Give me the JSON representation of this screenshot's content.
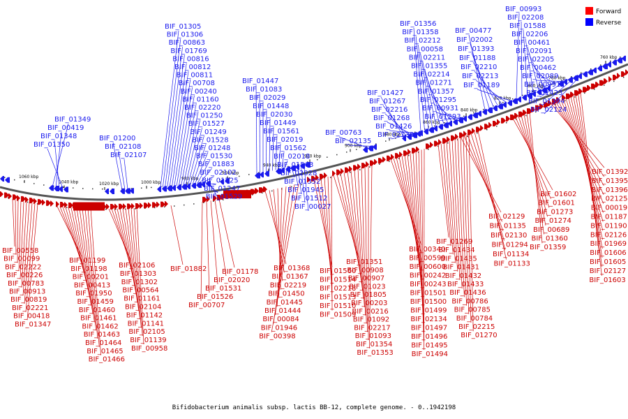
{
  "caption": "Bifidobacterium animalis subsp. lactis BB-12, complete genome. - 0..1942198",
  "legend": [
    {
      "label": "Forward",
      "color": "#ff0000"
    },
    {
      "label": "Reverse",
      "color": "#0000ff"
    }
  ],
  "colors": {
    "forward": "#cc0000",
    "reverse": "#1a1aee",
    "backbone": "#555555"
  },
  "ticks": [
    "1060 kbp",
    "1040 kbp",
    "1020 kbp",
    "1000 kbp",
    "980 kbp",
    "960 kbp",
    "940 kbp",
    "920 kbp",
    "900 kbp",
    "880 kbp",
    "860 kbp",
    "840 kbp",
    "820 kbp",
    "800 kbp",
    "780 kbp",
    "760 kbp"
  ],
  "reverse_groups": [
    [
      "BIF_01349",
      "BIF_00419",
      "BIF_01348",
      "BIF_01350"
    ],
    [
      "BIF_01200",
      "BIF_02108",
      "BIF_02107"
    ],
    [
      "BIF_01305",
      "BIF_01306",
      "BIF_00863",
      "BIF_01769",
      "BIF_00816",
      "BIF_00812",
      "BIF_00811",
      "BIF_00708",
      "BIF_00240",
      "BIF_01160",
      "BIF_02220",
      "BIF_01250",
      "BIF_01527",
      "BIF_01249",
      "BIF_01528",
      "BIF_01248",
      "BIF_01530",
      "BIF_01883",
      "BIF_02102",
      "BIF_01525",
      "BIF_01247",
      "BIF_01529"
    ],
    [
      "BIF_01447",
      "BIF_01083",
      "BIF_02029",
      "BIF_01448",
      "BIF_02030",
      "BIF_01449",
      "BIF_01561",
      "BIF_02019",
      "BIF_01562",
      "BIF_02018",
      "BIF_01563",
      "BIF_02028",
      "BIF_01352",
      "BIF_01945",
      "BIF_01512",
      "BIF_00027"
    ],
    [
      "BIF_00763",
      "BIF_02135"
    ],
    [
      "BIF_01427",
      "BIF_01267",
      "BIF_02216",
      "BIF_01268",
      "BIF_01426",
      "BIF_02132"
    ],
    [
      "BIF_01356",
      "BIF_01358",
      "BIF_02212",
      "BIF_00058",
      "BIF_02211",
      "BIF_01355",
      "BIF_02214",
      "BIF_01271",
      "BIF_01357",
      "BIF_01295",
      "BIF_00931",
      "BIF_01293"
    ],
    [
      "BIF_00477",
      "BIF_02002",
      "BIF_01393",
      "BIF_01188",
      "BIF_02210",
      "BIF_02213",
      "BIF_01189"
    ],
    [
      "BIF_00993",
      "BIF_02208",
      "BIF_01588",
      "BIF_02206",
      "BIF_00461",
      "BIF_02091",
      "BIF_02205",
      "BIF_00462",
      "BIF_02089",
      "BIF_00991",
      "BIF_01423",
      "BIF_01394",
      "BIF_02124"
    ]
  ],
  "forward_groups": [
    [
      "BIF_00558",
      "BIF_00099",
      "BIF_02222",
      "BIF_00226",
      "BIF_00783",
      "BIF_00913",
      "BIF_00819",
      "BIF_02221",
      "BIF_00418",
      "BIF_01347"
    ],
    [
      "BIF_01199",
      "BIF_01198",
      "BIF_00201",
      "BIF_00413",
      "BIF_01950",
      "BIF_01459",
      "BIF_01460",
      "BIF_01461",
      "BIF_01462",
      "BIF_01463",
      "BIF_01464",
      "BIF_01465",
      "BIF_01466"
    ],
    [
      "BIF_02106",
      "BIF_01303",
      "BIF_01302",
      "BIF_00564",
      "BIF_01161",
      "BIF_02104",
      "BIF_01142",
      "BIF_01141",
      "BIF_02105",
      "BIF_01139",
      "BIF_00958"
    ],
    [
      "BIF_01882"
    ],
    [
      "BIF_00707",
      "BIF_01526",
      "BIF_01531",
      "BIF_02020",
      "BIF_01178"
    ],
    [
      "BIF_01368",
      "BIF_01367",
      "BIF_02219",
      "BIF_01450",
      "BIF_01445",
      "BIF_01444",
      "BIF_00084",
      "BIF_01946",
      "BIF_00398"
    ],
    [
      "BIF_01560",
      "BIF_01514",
      "BIF_02218",
      "BIF_01513",
      "BIF_01510",
      "BIF_01509"
    ],
    [
      "BIF_01351",
      "BIF_00908",
      "BIF_00907",
      "BIF_01023",
      "BIF_01805",
      "BIF_00203",
      "BIF_00216",
      "BIF_01092",
      "BIF_02217",
      "BIF_01093",
      "BIF_01354",
      "BIF_01353"
    ],
    [
      "BIF_00340",
      "BIF_00599",
      "BIF_00600",
      "BIF_00242",
      "BIF_00243",
      "BIF_01501",
      "BIF_01500",
      "BIF_01499",
      "BIF_02134",
      "BIF_01497",
      "BIF_01496",
      "BIF_01495",
      "BIF_01494"
    ],
    [
      "BIF_01269",
      "BIF_01434",
      "BIF_01435",
      "BIF_01431",
      "BIF_01432",
      "BIF_01433",
      "BIF_01436",
      "BIF_00786",
      "BIF_00785",
      "BIF_00784",
      "BIF_02215",
      "BIF_01270"
    ],
    [
      "BIF_02129",
      "BIF_01135",
      "BIF_02130",
      "BIF_01294",
      "BIF_01134",
      "BIF_01133"
    ],
    [
      "BIF_01602",
      "BIF_01601",
      "BIF_01273",
      "BIF_01274",
      "BIF_00689",
      "BIF_01360",
      "BIF_01359"
    ],
    [
      "BIF_01392",
      "BIF_01395",
      "BIF_01396",
      "BIF_02125",
      "BIF_00019",
      "BIF_01187",
      "BIF_01190",
      "BIF_02126",
      "BIF_01969",
      "BIF_01606",
      "BIF_01605",
      "BIF_02127",
      "BIF_01603"
    ]
  ]
}
